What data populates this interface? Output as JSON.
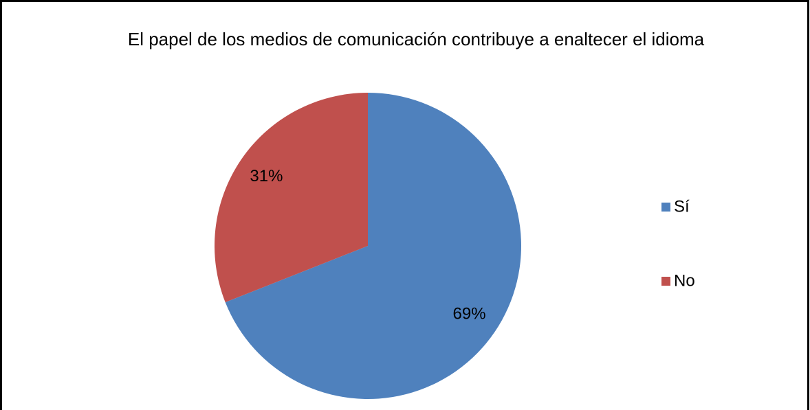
{
  "chart_data": {
    "type": "pie",
    "title": "El papel de los medios de comunicación contribuye a enaltecer el idioma",
    "categories": [
      "Sí",
      "No"
    ],
    "values": [
      69,
      31
    ],
    "value_labels": [
      "69%",
      "31%"
    ],
    "colors": [
      "#4f81bd",
      "#c0504d"
    ],
    "legend": "right"
  }
}
